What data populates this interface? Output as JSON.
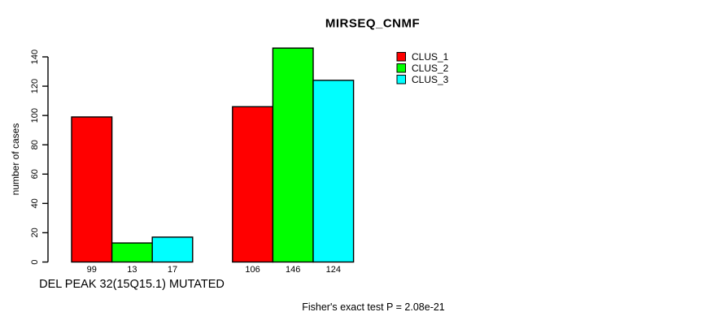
{
  "chart_data": {
    "type": "bar",
    "title": "MIRSEQ_CNMF",
    "ylabel": "number of cases",
    "xlabel": "DEL PEAK 32(15Q15.1) MUTATED",
    "categories": [
      "DEL PEAK 32(15Q15.1) MUTATED",
      ""
    ],
    "series": [
      {
        "name": "CLUS_1",
        "color": "#ff0000",
        "values": [
          99,
          106
        ]
      },
      {
        "name": "CLUS_2",
        "color": "#00ff00",
        "values": [
          13,
          146
        ]
      },
      {
        "name": "CLUS_3",
        "color": "#00ffff",
        "values": [
          17,
          124
        ]
      }
    ],
    "bar_value_labels": [
      [
        "99",
        "13",
        "17"
      ],
      [
        "106",
        "146",
        "124"
      ]
    ],
    "yticks": [
      0,
      20,
      40,
      60,
      80,
      100,
      120,
      140
    ],
    "ylim": [
      0,
      146
    ],
    "grid": false,
    "legend": {
      "position": "top-right",
      "entries": [
        {
          "label": "CLUS_1",
          "color": "#ff0000"
        },
        {
          "label": "CLUS_2",
          "color": "#00ff00"
        },
        {
          "label": "CLUS_3",
          "color": "#00ffff"
        }
      ]
    },
    "annotation": "Fisher's exact test P = 2.08e-21",
    "axis_color": "#000000",
    "bar_border_color": "#000000"
  }
}
